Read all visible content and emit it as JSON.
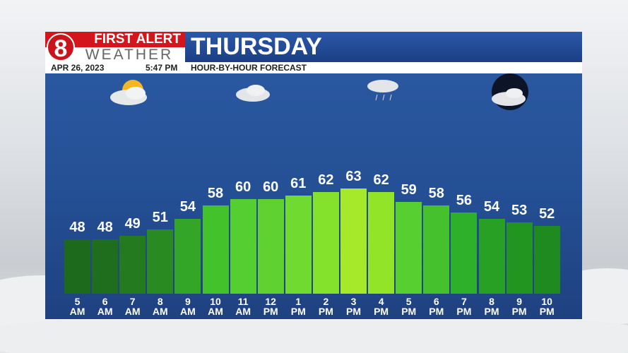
{
  "header": {
    "logo_top": "FIRST ALERT",
    "logo_bottom": "WEATHER",
    "title": "THURSDAY",
    "date": "APR 26, 2023",
    "time": "5:47 PM",
    "subtitle": "HOUR-BY-HOUR FORECAST"
  },
  "chart_data": {
    "type": "bar",
    "categories": [
      "5 AM",
      "6 AM",
      "7 AM",
      "8 AM",
      "9 AM",
      "10 AM",
      "11 AM",
      "12 PM",
      "1 PM",
      "2 PM",
      "3 PM",
      "4 PM",
      "5 PM",
      "6 PM",
      "7 PM",
      "8 PM",
      "9 PM",
      "10 PM"
    ],
    "values": [
      48,
      48,
      49,
      51,
      54,
      58,
      60,
      60,
      61,
      62,
      63,
      62,
      59,
      58,
      56,
      54,
      53,
      52
    ],
    "colors": [
      "#1d6a1d",
      "#1f6e1e",
      "#237a1f",
      "#2a8a22",
      "#33a527",
      "#43c22c",
      "#55ce31",
      "#5fd232",
      "#70da30",
      "#84e22c",
      "#a6e82a",
      "#92e428",
      "#58cf31",
      "#44c12c",
      "#2fb02a",
      "#28a024",
      "#229420",
      "#1f8a1f"
    ],
    "ylim": [
      32,
      97
    ]
  }
}
